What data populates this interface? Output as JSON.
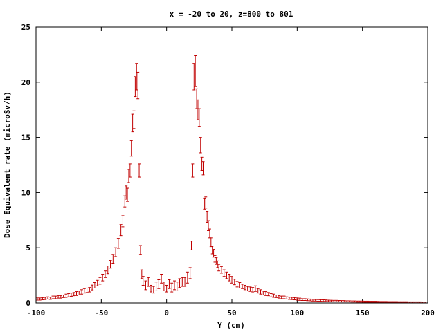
{
  "chart_data": {
    "type": "scatter",
    "title": "x = -20 to 20, z=800 to 801",
    "xlabel": "Y (cm)",
    "ylabel": "Dose Equivalent rate (microSv/h)",
    "xlim": [
      -100,
      200
    ],
    "ylim": [
      0,
      25
    ],
    "x_ticks": [
      "-100",
      "-50",
      "0",
      "50",
      "100",
      "150",
      "200"
    ],
    "y_ticks": [
      "0",
      "5",
      "10",
      "15",
      "20",
      "25"
    ],
    "grid": false,
    "legend": "none",
    "error_bars": true,
    "colors": {
      "series": "#c00000",
      "axes": "#000000",
      "background": "#ffffff"
    },
    "series": [
      {
        "points": [
          {
            "x": -99,
            "y": 0.35,
            "e": 0.1
          },
          {
            "x": -97,
            "y": 0.35,
            "e": 0.1
          },
          {
            "x": -95,
            "y": 0.38,
            "e": 0.1
          },
          {
            "x": -93,
            "y": 0.4,
            "e": 0.1
          },
          {
            "x": -91,
            "y": 0.45,
            "e": 0.1
          },
          {
            "x": -89,
            "y": 0.42,
            "e": 0.1
          },
          {
            "x": -87,
            "y": 0.5,
            "e": 0.12
          },
          {
            "x": -85,
            "y": 0.5,
            "e": 0.12
          },
          {
            "x": -83,
            "y": 0.55,
            "e": 0.12
          },
          {
            "x": -81,
            "y": 0.55,
            "e": 0.12
          },
          {
            "x": -79,
            "y": 0.6,
            "e": 0.12
          },
          {
            "x": -77,
            "y": 0.65,
            "e": 0.15
          },
          {
            "x": -75,
            "y": 0.7,
            "e": 0.15
          },
          {
            "x": -73,
            "y": 0.75,
            "e": 0.15
          },
          {
            "x": -71,
            "y": 0.8,
            "e": 0.15
          },
          {
            "x": -69,
            "y": 0.85,
            "e": 0.18
          },
          {
            "x": -67,
            "y": 0.9,
            "e": 0.18
          },
          {
            "x": -65,
            "y": 1.0,
            "e": 0.2
          },
          {
            "x": -63,
            "y": 1.1,
            "e": 0.2
          },
          {
            "x": -61,
            "y": 1.15,
            "e": 0.2
          },
          {
            "x": -59,
            "y": 1.2,
            "e": 0.2
          },
          {
            "x": -57,
            "y": 1.4,
            "e": 0.22
          },
          {
            "x": -55,
            "y": 1.6,
            "e": 0.25
          },
          {
            "x": -53,
            "y": 1.8,
            "e": 0.25
          },
          {
            "x": -51,
            "y": 2.0,
            "e": 0.3
          },
          {
            "x": -49,
            "y": 2.3,
            "e": 0.3
          },
          {
            "x": -47,
            "y": 2.6,
            "e": 0.3
          },
          {
            "x": -45,
            "y": 3.0,
            "e": 0.35
          },
          {
            "x": -43,
            "y": 3.5,
            "e": 0.35
          },
          {
            "x": -41,
            "y": 4.0,
            "e": 0.4
          },
          {
            "x": -39,
            "y": 4.6,
            "e": 0.4
          },
          {
            "x": -37,
            "y": 5.4,
            "e": 0.45
          },
          {
            "x": -35,
            "y": 6.6,
            "e": 0.5
          },
          {
            "x": -33.5,
            "y": 7.4,
            "e": 0.5
          },
          {
            "x": -32,
            "y": 9.2,
            "e": 0.5
          },
          {
            "x": -31,
            "y": 10.0,
            "e": 0.6
          },
          {
            "x": -30,
            "y": 9.8,
            "e": 0.6
          },
          {
            "x": -29,
            "y": 11.5,
            "e": 0.6
          },
          {
            "x": -28,
            "y": 12.0,
            "e": 0.6
          },
          {
            "x": -27,
            "y": 14.0,
            "e": 0.7
          },
          {
            "x": -26,
            "y": 16.3,
            "e": 0.8
          },
          {
            "x": -25,
            "y": 16.6,
            "e": 0.8
          },
          {
            "x": -24,
            "y": 19.6,
            "e": 0.9
          },
          {
            "x": -23,
            "y": 20.5,
            "e": 1.2
          },
          {
            "x": -22,
            "y": 19.7,
            "e": 1.2
          },
          {
            "x": -21,
            "y": 12.0,
            "e": 0.6
          },
          {
            "x": -20,
            "y": 4.8,
            "e": 0.4
          },
          {
            "x": -19,
            "y": 2.6,
            "e": 0.4
          },
          {
            "x": -18,
            "y": 2.0,
            "e": 0.4
          },
          {
            "x": -16,
            "y": 1.6,
            "e": 0.4
          },
          {
            "x": -14,
            "y": 1.9,
            "e": 0.4
          },
          {
            "x": -12,
            "y": 1.3,
            "e": 0.3
          },
          {
            "x": -10,
            "y": 1.2,
            "e": 0.3
          },
          {
            "x": -8,
            "y": 1.5,
            "e": 0.4
          },
          {
            "x": -6,
            "y": 1.7,
            "e": 0.4
          },
          {
            "x": -4,
            "y": 2.2,
            "e": 0.4
          },
          {
            "x": -2,
            "y": 1.5,
            "e": 0.4
          },
          {
            "x": 0,
            "y": 1.3,
            "e": 0.3
          },
          {
            "x": 2,
            "y": 1.7,
            "e": 0.4
          },
          {
            "x": 4,
            "y": 1.4,
            "e": 0.4
          },
          {
            "x": 6,
            "y": 1.6,
            "e": 0.4
          },
          {
            "x": 8,
            "y": 1.5,
            "e": 0.4
          },
          {
            "x": 10,
            "y": 1.8,
            "e": 0.4
          },
          {
            "x": 12,
            "y": 1.9,
            "e": 0.4
          },
          {
            "x": 14,
            "y": 1.9,
            "e": 0.4
          },
          {
            "x": 16,
            "y": 2.3,
            "e": 0.5
          },
          {
            "x": 18,
            "y": 2.7,
            "e": 0.5
          },
          {
            "x": 19,
            "y": 5.2,
            "e": 0.4
          },
          {
            "x": 20,
            "y": 12.0,
            "e": 0.6
          },
          {
            "x": 21,
            "y": 20.5,
            "e": 1.2
          },
          {
            "x": 22,
            "y": 21.0,
            "e": 1.4
          },
          {
            "x": 23,
            "y": 18.5,
            "e": 0.9
          },
          {
            "x": 24,
            "y": 17.5,
            "e": 0.9
          },
          {
            "x": 25,
            "y": 16.8,
            "e": 0.8
          },
          {
            "x": 26,
            "y": 14.3,
            "e": 0.7
          },
          {
            "x": 27,
            "y": 12.6,
            "e": 0.6
          },
          {
            "x": 28,
            "y": 12.2,
            "e": 0.6
          },
          {
            "x": 29,
            "y": 9.0,
            "e": 0.5
          },
          {
            "x": 30,
            "y": 9.1,
            "e": 0.5
          },
          {
            "x": 31,
            "y": 7.8,
            "e": 0.5
          },
          {
            "x": 32,
            "y": 7.0,
            "e": 0.45
          },
          {
            "x": 33,
            "y": 6.3,
            "e": 0.4
          },
          {
            "x": 34,
            "y": 5.5,
            "e": 0.4
          },
          {
            "x": 35,
            "y": 4.8,
            "e": 0.35
          },
          {
            "x": 36,
            "y": 4.5,
            "e": 0.35
          },
          {
            "x": 37,
            "y": 4.0,
            "e": 0.3
          },
          {
            "x": 38,
            "y": 3.8,
            "e": 0.3
          },
          {
            "x": 39,
            "y": 3.5,
            "e": 0.3
          },
          {
            "x": 40,
            "y": 3.2,
            "e": 0.3
          },
          {
            "x": 42,
            "y": 3.0,
            "e": 0.3
          },
          {
            "x": 44,
            "y": 2.7,
            "e": 0.3
          },
          {
            "x": 46,
            "y": 2.5,
            "e": 0.3
          },
          {
            "x": 48,
            "y": 2.3,
            "e": 0.3
          },
          {
            "x": 50,
            "y": 2.1,
            "e": 0.3
          },
          {
            "x": 52,
            "y": 1.9,
            "e": 0.25
          },
          {
            "x": 54,
            "y": 1.7,
            "e": 0.25
          },
          {
            "x": 56,
            "y": 1.6,
            "e": 0.25
          },
          {
            "x": 58,
            "y": 1.5,
            "e": 0.2
          },
          {
            "x": 60,
            "y": 1.4,
            "e": 0.2
          },
          {
            "x": 62,
            "y": 1.3,
            "e": 0.2
          },
          {
            "x": 64,
            "y": 1.25,
            "e": 0.2
          },
          {
            "x": 66,
            "y": 1.2,
            "e": 0.2
          },
          {
            "x": 68,
            "y": 1.3,
            "e": 0.25
          },
          {
            "x": 70,
            "y": 1.1,
            "e": 0.2
          },
          {
            "x": 72,
            "y": 1.0,
            "e": 0.2
          },
          {
            "x": 74,
            "y": 0.9,
            "e": 0.18
          },
          {
            "x": 76,
            "y": 0.85,
            "e": 0.18
          },
          {
            "x": 78,
            "y": 0.8,
            "e": 0.15
          },
          {
            "x": 80,
            "y": 0.7,
            "e": 0.15
          },
          {
            "x": 82,
            "y": 0.65,
            "e": 0.15
          },
          {
            "x": 84,
            "y": 0.6,
            "e": 0.12
          },
          {
            "x": 86,
            "y": 0.55,
            "e": 0.12
          },
          {
            "x": 88,
            "y": 0.5,
            "e": 0.12
          },
          {
            "x": 90,
            "y": 0.5,
            "e": 0.12
          },
          {
            "x": 92,
            "y": 0.45,
            "e": 0.1
          },
          {
            "x": 94,
            "y": 0.42,
            "e": 0.1
          },
          {
            "x": 96,
            "y": 0.4,
            "e": 0.1
          },
          {
            "x": 98,
            "y": 0.38,
            "e": 0.1
          },
          {
            "x": 100,
            "y": 0.35,
            "e": 0.1
          },
          {
            "x": 102,
            "y": 0.33,
            "e": 0.1
          },
          {
            "x": 104,
            "y": 0.3,
            "e": 0.08
          },
          {
            "x": 106,
            "y": 0.3,
            "e": 0.08
          },
          {
            "x": 108,
            "y": 0.28,
            "e": 0.08
          },
          {
            "x": 110,
            "y": 0.27,
            "e": 0.08
          },
          {
            "x": 112,
            "y": 0.25,
            "e": 0.08
          },
          {
            "x": 114,
            "y": 0.24,
            "e": 0.07
          },
          {
            "x": 116,
            "y": 0.23,
            "e": 0.07
          },
          {
            "x": 118,
            "y": 0.22,
            "e": 0.07
          },
          {
            "x": 120,
            "y": 0.21,
            "e": 0.07
          },
          {
            "x": 122,
            "y": 0.2,
            "e": 0.07
          },
          {
            "x": 124,
            "y": 0.19,
            "e": 0.06
          },
          {
            "x": 126,
            "y": 0.18,
            "e": 0.06
          },
          {
            "x": 128,
            "y": 0.17,
            "e": 0.06
          },
          {
            "x": 130,
            "y": 0.17,
            "e": 0.06
          },
          {
            "x": 132,
            "y": 0.16,
            "e": 0.06
          },
          {
            "x": 134,
            "y": 0.15,
            "e": 0.06
          },
          {
            "x": 136,
            "y": 0.15,
            "e": 0.06
          },
          {
            "x": 138,
            "y": 0.14,
            "e": 0.05
          },
          {
            "x": 140,
            "y": 0.14,
            "e": 0.05
          },
          {
            "x": 142,
            "y": 0.13,
            "e": 0.05
          },
          {
            "x": 144,
            "y": 0.13,
            "e": 0.05
          },
          {
            "x": 146,
            "y": 0.12,
            "e": 0.05
          },
          {
            "x": 148,
            "y": 0.12,
            "e": 0.05
          },
          {
            "x": 150,
            "y": 0.12,
            "e": 0.05
          },
          {
            "x": 152,
            "y": 0.11,
            "e": 0.05
          },
          {
            "x": 154,
            "y": 0.11,
            "e": 0.05
          },
          {
            "x": 156,
            "y": 0.1,
            "e": 0.05
          },
          {
            "x": 158,
            "y": 0.1,
            "e": 0.05
          },
          {
            "x": 160,
            "y": 0.1,
            "e": 0.05
          },
          {
            "x": 162,
            "y": 0.1,
            "e": 0.04
          },
          {
            "x": 164,
            "y": 0.09,
            "e": 0.04
          },
          {
            "x": 166,
            "y": 0.09,
            "e": 0.04
          },
          {
            "x": 168,
            "y": 0.09,
            "e": 0.04
          },
          {
            "x": 170,
            "y": 0.08,
            "e": 0.04
          },
          {
            "x": 172,
            "y": 0.08,
            "e": 0.04
          },
          {
            "x": 174,
            "y": 0.08,
            "e": 0.04
          },
          {
            "x": 176,
            "y": 0.08,
            "e": 0.04
          },
          {
            "x": 178,
            "y": 0.07,
            "e": 0.04
          },
          {
            "x": 180,
            "y": 0.07,
            "e": 0.04
          },
          {
            "x": 182,
            "y": 0.07,
            "e": 0.04
          },
          {
            "x": 184,
            "y": 0.07,
            "e": 0.04
          },
          {
            "x": 186,
            "y": 0.06,
            "e": 0.04
          },
          {
            "x": 188,
            "y": 0.06,
            "e": 0.04
          },
          {
            "x": 190,
            "y": 0.06,
            "e": 0.04
          },
          {
            "x": 192,
            "y": 0.06,
            "e": 0.04
          },
          {
            "x": 194,
            "y": 0.06,
            "e": 0.04
          },
          {
            "x": 196,
            "y": 0.05,
            "e": 0.04
          },
          {
            "x": 198,
            "y": 0.05,
            "e": 0.04
          }
        ]
      }
    ]
  }
}
